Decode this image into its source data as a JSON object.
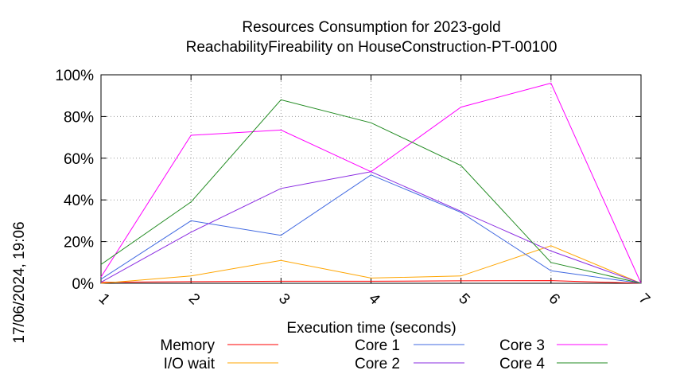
{
  "side_label": "17/06/2024, 19:06",
  "chart_data": {
    "type": "line",
    "title_line1": "Resources Consumption for 2023-gold",
    "title_line2": "ReachabilityFireability on HouseConstruction-PT-00100",
    "xlabel": "Execution time (seconds)",
    "ylabel": "",
    "xlim": [
      1,
      7
    ],
    "ylim": [
      0,
      100
    ],
    "x_ticks": [
      "1",
      "2",
      "3",
      "4",
      "5",
      "6",
      "7"
    ],
    "y_ticks": [
      "0%",
      "20%",
      "40%",
      "60%",
      "80%",
      "100%"
    ],
    "grid": true,
    "legend_position": "bottom",
    "x": [
      1,
      2,
      3,
      4,
      5,
      6,
      7
    ],
    "series": [
      {
        "name": "Memory",
        "color": "#ff0000",
        "values": [
          0.5,
          0.8,
          1.0,
          1.0,
          1.2,
          1.3,
          0
        ]
      },
      {
        "name": "I/O wait",
        "color": "#ffa500",
        "values": [
          0,
          3.5,
          11,
          2.5,
          3.5,
          18,
          0
        ]
      },
      {
        "name": "Core 1",
        "color": "#4169e1",
        "values": [
          2,
          30,
          23,
          52,
          34,
          6,
          0
        ]
      },
      {
        "name": "Core 2",
        "color": "#8a2be2",
        "values": [
          0.5,
          24.5,
          45.5,
          53.5,
          34.5,
          15.5,
          0
        ]
      },
      {
        "name": "Core 3",
        "color": "#ff00ff",
        "values": [
          3,
          71,
          73.5,
          53.5,
          84.5,
          96,
          0
        ]
      },
      {
        "name": "Core 4",
        "color": "#228b22",
        "values": [
          9,
          39,
          88,
          77,
          56.5,
          10,
          0
        ]
      }
    ]
  }
}
